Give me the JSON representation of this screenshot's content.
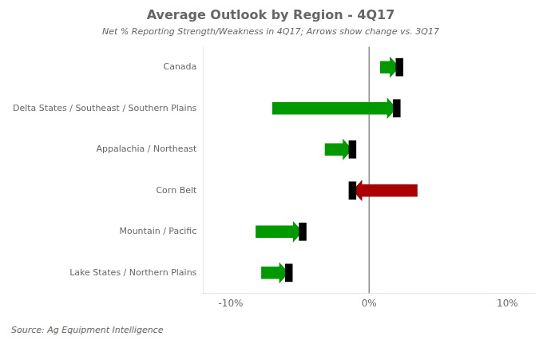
{
  "chart_data": {
    "type": "arrow",
    "orientation": "horizontal",
    "title": "Average Outlook by Region - 4Q17",
    "subtitle": "Net % Reporting Strength/Weakness in 4Q17; Arrows show change vs. 3Q17",
    "source": "Source: Ag Equipment Intelligence",
    "categories": [
      "Canada",
      "Delta States / Southeast / Southern Plains",
      "Appalachia / Northeast",
      "Corn Belt",
      "Mountain / Pacific",
      "Lake States / Northern Plains"
    ],
    "values": [
      2.2,
      2.0,
      -1.2,
      -1.2,
      -4.8,
      -5.8
    ],
    "previous_values": [
      0.8,
      -7.0,
      -3.2,
      3.5,
      -8.2,
      -7.8
    ],
    "colors": [
      "#009900",
      "#009900",
      "#009900",
      "#aa0000",
      "#009900",
      "#009900"
    ],
    "marker": "bar",
    "color": "#000000",
    "xlim": [
      -12,
      12
    ],
    "xticks": [
      {
        "value": -10,
        "label": "-10%"
      },
      {
        "value": 0,
        "label": "0%"
      },
      {
        "value": 10,
        "label": "10%"
      }
    ],
    "grid": false
  }
}
